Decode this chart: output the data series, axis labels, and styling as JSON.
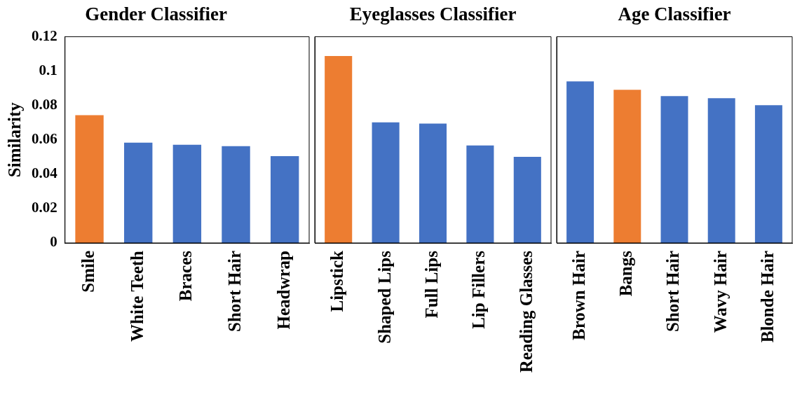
{
  "chart_data": [
    {
      "type": "bar",
      "title": "Gender Classifier",
      "ylabel": "Similarity",
      "categories": [
        "Smile",
        "White Teeth",
        "Braces",
        "Short Hair",
        "Headwrap"
      ],
      "values": [
        0.0743,
        0.0583,
        0.0571,
        0.0563,
        0.0505
      ],
      "colors": [
        "#ed7d31",
        "#4472c4",
        "#4472c4",
        "#4472c4",
        "#4472c4"
      ],
      "ylim": [
        0,
        0.12
      ],
      "yticks": [
        0,
        0.02,
        0.04,
        0.06,
        0.08,
        0.1,
        0.12
      ],
      "grid": false,
      "legend": false
    },
    {
      "type": "bar",
      "title": "Eyeglasses Classifier",
      "categories": [
        "Lipstick",
        "Shaped Lips",
        "Full Lips",
        "Lip Fillers",
        "Reading Glasses"
      ],
      "values": [
        0.1088,
        0.0702,
        0.0694,
        0.0567,
        0.0501
      ],
      "colors": [
        "#ed7d31",
        "#4472c4",
        "#4472c4",
        "#4472c4",
        "#4472c4"
      ],
      "ylim": [
        0,
        0.12
      ],
      "yticks": [
        0,
        0.02,
        0.04,
        0.06,
        0.08,
        0.1,
        0.12
      ],
      "tick_labels": "x",
      "grid": false,
      "legend": false
    },
    {
      "type": "bar",
      "title": "Age Classifier",
      "categories": [
        "Brown Hair",
        "Bangs",
        "Short Hair",
        "Wavy Hair",
        "Blonde Hair"
      ],
      "values": [
        0.094,
        0.0891,
        0.0854,
        0.0842,
        0.0801
      ],
      "colors": [
        "#4472c4",
        "#ed7d31",
        "#4472c4",
        "#4472c4",
        "#4472c4"
      ],
      "ylim": [
        0,
        0.12
      ],
      "yticks": [
        0,
        0.02,
        0.04,
        0.06,
        0.08,
        0.1,
        0.12
      ],
      "tick_labels": "x",
      "grid": false,
      "legend": false
    }
  ]
}
